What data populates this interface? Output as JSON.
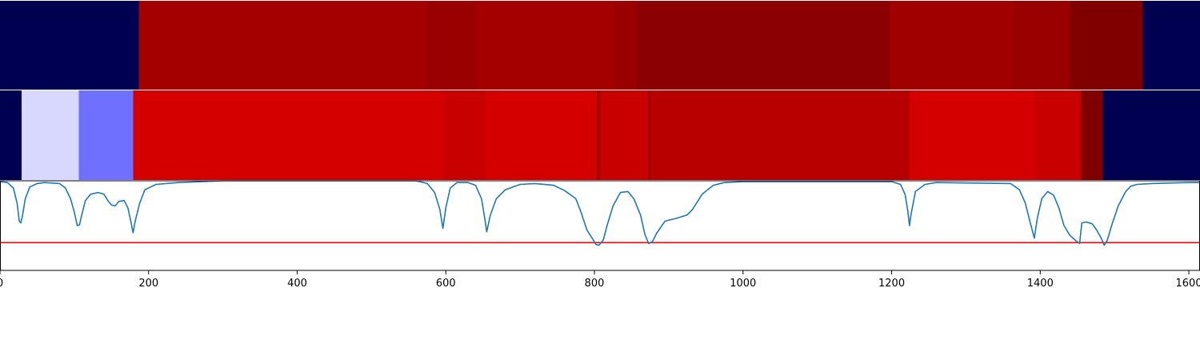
{
  "chart_data": {
    "type": "heatmap",
    "x_range": [
      0,
      1615
    ],
    "x_ticks": [
      {
        "value": 0,
        "label": "0"
      },
      {
        "value": 200,
        "label": "200"
      },
      {
        "value": 400,
        "label": "400"
      },
      {
        "value": 600,
        "label": "600"
      },
      {
        "value": 800,
        "label": "800"
      },
      {
        "value": 1000,
        "label": "1000"
      },
      {
        "value": 1200,
        "label": "1200"
      },
      {
        "value": 1400,
        "label": "1400"
      },
      {
        "value": 1600,
        "label": "1600"
      }
    ],
    "grid": false,
    "legend": "none",
    "bands": [
      {
        "name": "",
        "segments": [
          {
            "start": 0,
            "end": 187,
            "color": "#000050"
          },
          {
            "start": 187,
            "end": 572,
            "color": "#a50000"
          },
          {
            "start": 572,
            "end": 642,
            "color": "#9b0000"
          },
          {
            "start": 642,
            "end": 827,
            "color": "#a50000"
          },
          {
            "start": 827,
            "end": 857,
            "color": "#9b0000"
          },
          {
            "start": 857,
            "end": 1198,
            "color": "#8b0000"
          },
          {
            "start": 1198,
            "end": 1363,
            "color": "#a00000"
          },
          {
            "start": 1363,
            "end": 1440,
            "color": "#990000"
          },
          {
            "start": 1440,
            "end": 1538,
            "color": "#800000"
          },
          {
            "start": 1538,
            "end": 1615,
            "color": "#000050"
          }
        ]
      },
      {
        "name": "",
        "segments": [
          {
            "start": 0,
            "end": 29,
            "color": "#000050"
          },
          {
            "start": 29,
            "end": 106,
            "color": "#d8d8ff"
          },
          {
            "start": 106,
            "end": 179,
            "color": "#7070ff"
          },
          {
            "start": 179,
            "end": 598,
            "color": "#d40000"
          },
          {
            "start": 598,
            "end": 654,
            "color": "#c80000"
          },
          {
            "start": 654,
            "end": 803,
            "color": "#d40000"
          },
          {
            "start": 803,
            "end": 808,
            "color": "#a80000"
          },
          {
            "start": 808,
            "end": 872,
            "color": "#c80000"
          },
          {
            "start": 872,
            "end": 876,
            "color": "#a80000"
          },
          {
            "start": 876,
            "end": 1224,
            "color": "#b80000"
          },
          {
            "start": 1224,
            "end": 1393,
            "color": "#d40000"
          },
          {
            "start": 1393,
            "end": 1455,
            "color": "#c80000"
          },
          {
            "start": 1455,
            "end": 1484,
            "color": "#800000"
          },
          {
            "start": 1484,
            "end": 1615,
            "color": "#000050"
          }
        ]
      }
    ],
    "line_panel": {
      "ylim": [
        0,
        1
      ],
      "series": [
        {
          "name": "",
          "color": "#1f77b4",
          "points": [
            [
              0,
              0.99
            ],
            [
              10,
              0.98
            ],
            [
              18,
              0.92
            ],
            [
              23,
              0.75
            ],
            [
              26,
              0.55
            ],
            [
              28,
              0.53
            ],
            [
              30,
              0.6
            ],
            [
              34,
              0.8
            ],
            [
              40,
              0.93
            ],
            [
              50,
              0.97
            ],
            [
              60,
              0.98
            ],
            [
              80,
              0.97
            ],
            [
              88,
              0.92
            ],
            [
              95,
              0.8
            ],
            [
              100,
              0.65
            ],
            [
              104,
              0.5
            ],
            [
              107,
              0.51
            ],
            [
              110,
              0.62
            ],
            [
              115,
              0.78
            ],
            [
              122,
              0.85
            ],
            [
              132,
              0.87
            ],
            [
              140,
              0.85
            ],
            [
              145,
              0.78
            ],
            [
              150,
              0.73
            ],
            [
              155,
              0.72
            ],
            [
              160,
              0.77
            ],
            [
              167,
              0.78
            ],
            [
              172,
              0.7
            ],
            [
              176,
              0.55
            ],
            [
              179,
              0.42
            ],
            [
              182,
              0.55
            ],
            [
              188,
              0.75
            ],
            [
              195,
              0.9
            ],
            [
              210,
              0.96
            ],
            [
              240,
              0.98
            ],
            [
              300,
              1.0
            ],
            [
              400,
              1.0
            ],
            [
              500,
              1.0
            ],
            [
              560,
              1.0
            ],
            [
              575,
              0.97
            ],
            [
              585,
              0.87
            ],
            [
              592,
              0.68
            ],
            [
              596,
              0.47
            ],
            [
              600,
              0.7
            ],
            [
              606,
              0.92
            ],
            [
              615,
              0.98
            ],
            [
              630,
              0.98
            ],
            [
              640,
              0.95
            ],
            [
              648,
              0.8
            ],
            [
              652,
              0.6
            ],
            [
              655,
              0.43
            ],
            [
              660,
              0.62
            ],
            [
              668,
              0.8
            ],
            [
              680,
              0.9
            ],
            [
              700,
              0.96
            ],
            [
              720,
              0.97
            ],
            [
              745,
              0.95
            ],
            [
              760,
              0.89
            ],
            [
              775,
              0.8
            ],
            [
              782,
              0.65
            ],
            [
              790,
              0.45
            ],
            [
              797,
              0.36
            ],
            [
              802,
              0.29
            ],
            [
              806,
              0.28
            ],
            [
              812,
              0.34
            ],
            [
              817,
              0.5
            ],
            [
              825,
              0.72
            ],
            [
              835,
              0.87
            ],
            [
              845,
              0.88
            ],
            [
              853,
              0.8
            ],
            [
              862,
              0.62
            ],
            [
              868,
              0.4
            ],
            [
              873,
              0.3
            ],
            [
              878,
              0.32
            ],
            [
              884,
              0.42
            ],
            [
              895,
              0.55
            ],
            [
              910,
              0.58
            ],
            [
              925,
              0.62
            ],
            [
              932,
              0.68
            ],
            [
              945,
              0.85
            ],
            [
              960,
              0.95
            ],
            [
              975,
              0.98
            ],
            [
              1000,
              0.99
            ],
            [
              1100,
              0.99
            ],
            [
              1200,
              0.99
            ],
            [
              1212,
              0.96
            ],
            [
              1218,
              0.85
            ],
            [
              1222,
              0.65
            ],
            [
              1224,
              0.5
            ],
            [
              1226,
              0.62
            ],
            [
              1232,
              0.88
            ],
            [
              1245,
              0.96
            ],
            [
              1260,
              0.98
            ],
            [
              1360,
              0.97
            ],
            [
              1372,
              0.9
            ],
            [
              1380,
              0.75
            ],
            [
              1386,
              0.55
            ],
            [
              1392,
              0.36
            ],
            [
              1396,
              0.58
            ],
            [
              1402,
              0.8
            ],
            [
              1410,
              0.88
            ],
            [
              1418,
              0.84
            ],
            [
              1425,
              0.7
            ],
            [
              1432,
              0.5
            ],
            [
              1440,
              0.39
            ],
            [
              1448,
              0.33
            ],
            [
              1453,
              0.3
            ],
            [
              1456,
              0.53
            ],
            [
              1462,
              0.54
            ],
            [
              1470,
              0.52
            ],
            [
              1476,
              0.45
            ],
            [
              1482,
              0.36
            ],
            [
              1486,
              0.28
            ],
            [
              1490,
              0.33
            ],
            [
              1496,
              0.5
            ],
            [
              1505,
              0.72
            ],
            [
              1515,
              0.88
            ],
            [
              1522,
              0.94
            ],
            [
              1530,
              0.96
            ],
            [
              1550,
              0.97
            ],
            [
              1600,
              0.98
            ],
            [
              1615,
              0.98
            ]
          ]
        }
      ],
      "hline": {
        "y": 0.31,
        "color": "#ff0000"
      }
    }
  }
}
